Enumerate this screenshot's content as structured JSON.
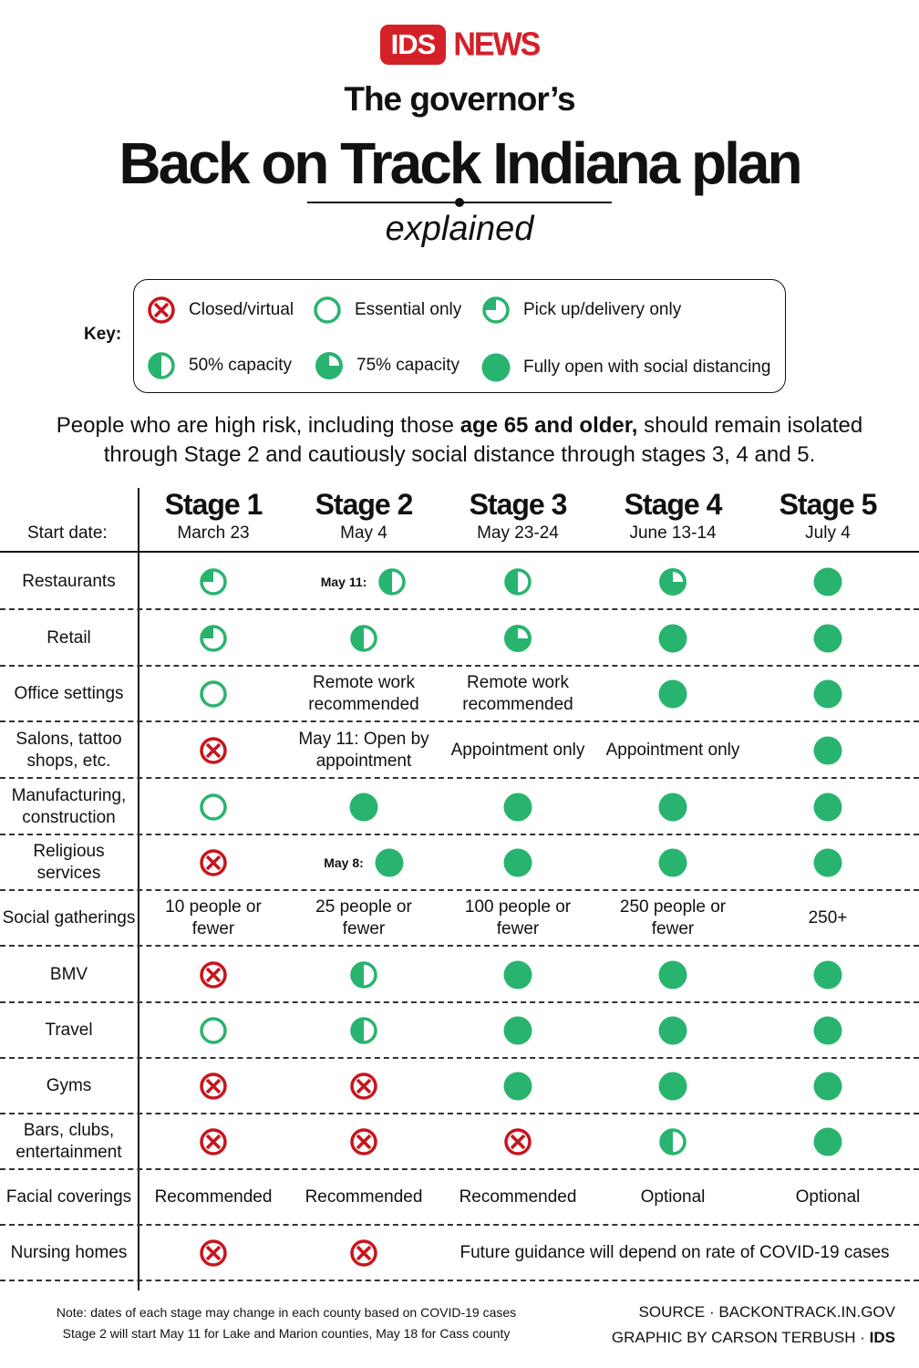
{
  "header": {
    "logo_ids": "IDS",
    "logo_news": "NEWS",
    "title_small": "The governor’s",
    "title_big": "Back on Track Indiana plan",
    "subtitle": "explained"
  },
  "colors": {
    "brand_red": "#d42027",
    "open_green": "#28b46e",
    "closed_red": "#c8141c",
    "text": "#111111"
  },
  "key": {
    "label": "Key:",
    "items": [
      {
        "icon": "closed",
        "label": "Closed/virtual"
      },
      {
        "icon": "essential",
        "label": "Essential only"
      },
      {
        "icon": "pickup",
        "label": "Pick up/delivery only"
      },
      {
        "icon": "half",
        "label": "50% capacity"
      },
      {
        "icon": "three-quarter",
        "label": "75% capacity"
      },
      {
        "icon": "full",
        "label": "Fully open with social distancing"
      }
    ]
  },
  "notice": {
    "part1": "People who are high risk, including those ",
    "bold": "age 65 and older,",
    "part2": " should remain isolated",
    "line2": "through Stage 2 and cautiously social distance through stages 3, 4 and 5."
  },
  "table": {
    "start_date_label": "Start date:",
    "stages": [
      {
        "name": "Stage 1",
        "date": "March 23"
      },
      {
        "name": "Stage 2",
        "date": "May 4"
      },
      {
        "name": "Stage 3",
        "date": "May 23-24"
      },
      {
        "name": "Stage 4",
        "date": "June 13-14"
      },
      {
        "name": "Stage 5",
        "date": "July 4"
      }
    ],
    "rows": [
      {
        "label": "Restaurants",
        "cells": [
          {
            "icon": "pickup"
          },
          {
            "icon": "half",
            "prefix": "May 11:"
          },
          {
            "icon": "half"
          },
          {
            "icon": "three-quarter"
          },
          {
            "icon": "full"
          }
        ]
      },
      {
        "label": "Retail",
        "cells": [
          {
            "icon": "pickup"
          },
          {
            "icon": "half"
          },
          {
            "icon": "three-quarter"
          },
          {
            "icon": "full"
          },
          {
            "icon": "full"
          }
        ]
      },
      {
        "label": "Office settings",
        "cells": [
          {
            "icon": "essential"
          },
          {
            "text": "Remote work recommended"
          },
          {
            "text": "Remote work recommended"
          },
          {
            "icon": "full"
          },
          {
            "icon": "full"
          }
        ]
      },
      {
        "label": "Salons, tattoo shops, etc.",
        "cells": [
          {
            "icon": "closed"
          },
          {
            "text": "May 11: Open by appointment"
          },
          {
            "text": "Appointment only"
          },
          {
            "text": "Appointment only"
          },
          {
            "icon": "full"
          }
        ]
      },
      {
        "label": "Manufacturing, construction",
        "cells": [
          {
            "icon": "essential"
          },
          {
            "icon": "full"
          },
          {
            "icon": "full"
          },
          {
            "icon": "full"
          },
          {
            "icon": "full"
          }
        ]
      },
      {
        "label": "Religious services",
        "cells": [
          {
            "icon": "closed"
          },
          {
            "icon": "full",
            "prefix": "May 8:"
          },
          {
            "icon": "full"
          },
          {
            "icon": "full"
          },
          {
            "icon": "full"
          }
        ]
      },
      {
        "label": "Social gatherings",
        "cells": [
          {
            "text": "10 people or fewer"
          },
          {
            "text": "25 people or fewer"
          },
          {
            "text": "100 people or fewer"
          },
          {
            "text": "250 people or fewer"
          },
          {
            "text": "250+"
          }
        ]
      },
      {
        "label": "BMV",
        "cells": [
          {
            "icon": "closed"
          },
          {
            "icon": "half"
          },
          {
            "icon": "full"
          },
          {
            "icon": "full"
          },
          {
            "icon": "full"
          }
        ]
      },
      {
        "label": "Travel",
        "cells": [
          {
            "icon": "essential"
          },
          {
            "icon": "half"
          },
          {
            "icon": "full"
          },
          {
            "icon": "full"
          },
          {
            "icon": "full"
          }
        ]
      },
      {
        "label": "Gyms",
        "cells": [
          {
            "icon": "closed"
          },
          {
            "icon": "closed"
          },
          {
            "icon": "full"
          },
          {
            "icon": "full"
          },
          {
            "icon": "full"
          }
        ]
      },
      {
        "label": "Bars, clubs, entertainment",
        "cells": [
          {
            "icon": "closed"
          },
          {
            "icon": "closed"
          },
          {
            "icon": "closed"
          },
          {
            "icon": "half"
          },
          {
            "icon": "full"
          }
        ]
      },
      {
        "label": "Facial coverings",
        "cells": [
          {
            "text": "Recommended"
          },
          {
            "text": "Recommended"
          },
          {
            "text": "Recommended"
          },
          {
            "text": "Optional"
          },
          {
            "text": "Optional"
          }
        ]
      },
      {
        "label": "Nursing homes",
        "cells": [
          {
            "icon": "closed"
          },
          {
            "icon": "closed"
          }
        ],
        "span_text": "Future guidance will depend on rate of COVID-19 cases"
      }
    ]
  },
  "footer": {
    "note_line1": "Note: dates of each stage may change in each county based on COVID-19 cases",
    "note_line2": "Stage 2 will start May 11 for Lake and Marion counties, May 18 for Cass county",
    "source": "SOURCE · BACKONTRACK.IN.GOV",
    "credit": "GRAPHIC BY CARSON TERBUSH · ",
    "credit_brand": "IDS"
  }
}
